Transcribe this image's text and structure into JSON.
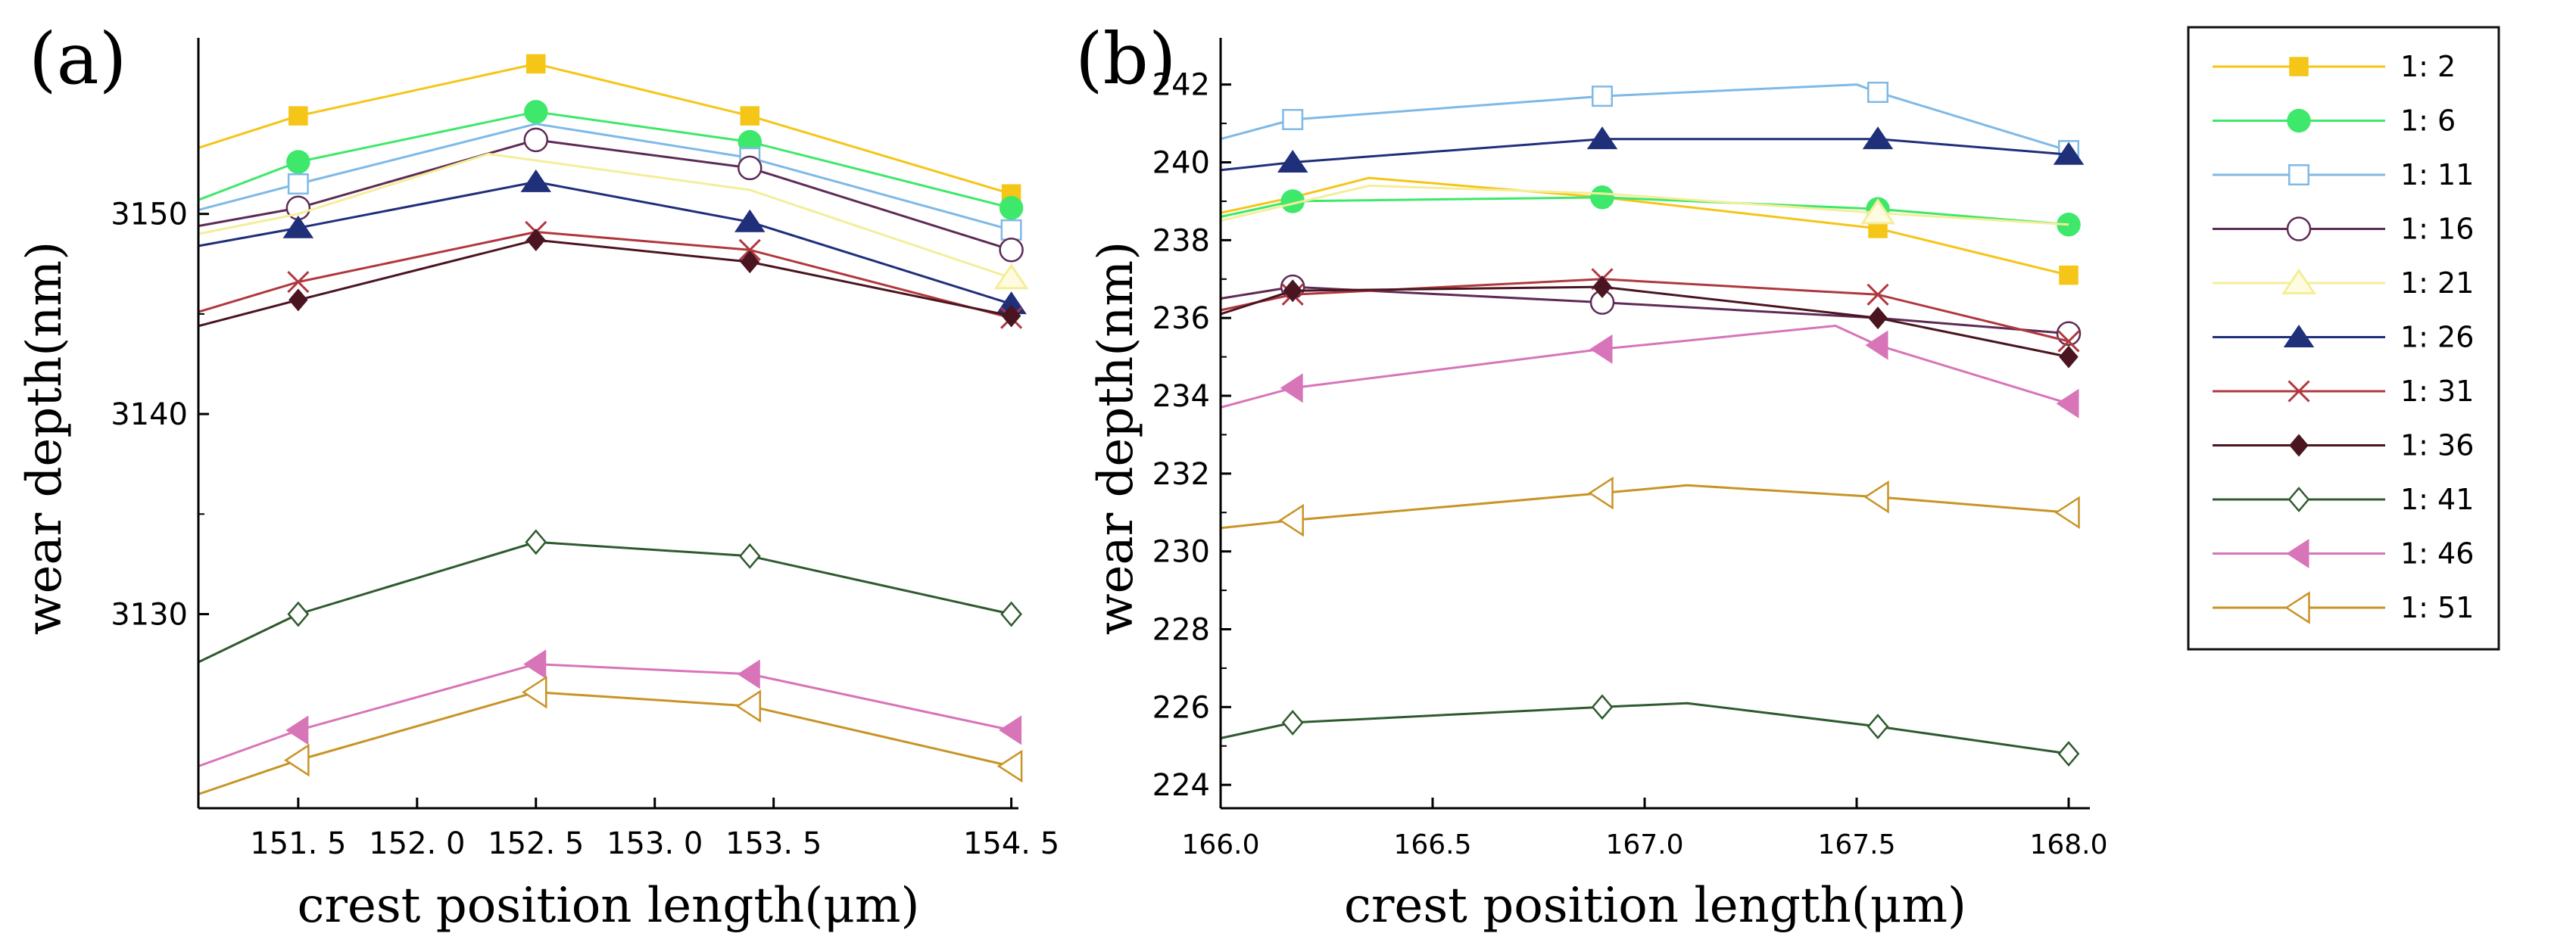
{
  "figure": {
    "panel_a_label": "(a)",
    "panel_b_label": "(b)"
  },
  "legend": {
    "entries": [
      {
        "label": "1: 2",
        "color": "#F5C518",
        "marker": "square-filled"
      },
      {
        "label": "1: 6",
        "color": "#3EE86A",
        "marker": "circle-filled"
      },
      {
        "label": "1: 11",
        "color": "#7FB9E6",
        "marker": "square-open"
      },
      {
        "label": "1: 16",
        "color": "#5E2B55",
        "marker": "circle-open"
      },
      {
        "label": "1: 21",
        "color": "#F4EE9A",
        "marker": "triangle-up-open"
      },
      {
        "label": "1: 26",
        "color": "#1F2F7A",
        "marker": "triangle-up-filled"
      },
      {
        "label": "1: 31",
        "color": "#B0383E",
        "marker": "x"
      },
      {
        "label": "1: 36",
        "color": "#4A1520",
        "marker": "diamond-filled"
      },
      {
        "label": "1: 41",
        "color": "#2F5A2F",
        "marker": "diamond-open"
      },
      {
        "label": "1: 46",
        "color": "#D874B8",
        "marker": "triangle-left-filled"
      },
      {
        "label": "1: 51",
        "color": "#C89426",
        "marker": "triangle-left-open"
      }
    ]
  },
  "chart_data": [
    {
      "type": "line",
      "panel": "(a)",
      "xlabel": "crest position length(μm)",
      "ylabel": "wear depth(nm)",
      "xlim": [
        151.08,
        154.53
      ],
      "ylim": [
        3120.3,
        3158.8
      ],
      "xticks": [
        151.5,
        152.0,
        152.5,
        153.0,
        153.5,
        154.5
      ],
      "xtick_labels": [
        "151. 5",
        "152. 0",
        "152. 5",
        "153. 0",
        "153. 5",
        "154. 5"
      ],
      "yticks": [
        3130,
        3140,
        3150
      ],
      "ytick_labels": [
        "3130",
        "3140",
        "3150"
      ],
      "series": [
        {
          "name": "1: 2",
          "points": [
            [
              151.08,
              3153.3
            ],
            [
              151.5,
              3154.9
            ],
            [
              152.5,
              3157.5
            ],
            [
              153.4,
              3154.9
            ],
            [
              154.5,
              3151.0
            ]
          ],
          "markers": [
            [
              151.5,
              3154.9
            ],
            [
              152.5,
              3157.5
            ],
            [
              153.4,
              3154.9
            ],
            [
              154.5,
              3151.0
            ]
          ]
        },
        {
          "name": "1: 6",
          "points": [
            [
              151.08,
              3150.7
            ],
            [
              151.5,
              3152.6
            ],
            [
              152.5,
              3155.1
            ],
            [
              153.4,
              3153.6
            ],
            [
              154.5,
              3150.3
            ]
          ],
          "markers": [
            [
              151.5,
              3152.6
            ],
            [
              152.5,
              3155.1
            ],
            [
              153.4,
              3153.6
            ],
            [
              154.5,
              3150.3
            ]
          ]
        },
        {
          "name": "1: 11",
          "points": [
            [
              151.08,
              3150.2
            ],
            [
              151.5,
              3151.5
            ],
            [
              152.5,
              3154.5
            ],
            [
              153.4,
              3152.8
            ],
            [
              154.5,
              3149.2
            ]
          ],
          "markers": [
            [
              151.5,
              3151.5
            ],
            [
              153.4,
              3152.8
            ],
            [
              154.5,
              3149.2
            ]
          ]
        },
        {
          "name": "1: 16",
          "points": [
            [
              151.08,
              3149.4
            ],
            [
              151.5,
              3150.3
            ],
            [
              152.5,
              3153.7
            ],
            [
              153.4,
              3152.3
            ],
            [
              154.5,
              3148.2
            ]
          ],
          "markers": [
            [
              151.5,
              3150.3
            ],
            [
              152.5,
              3153.7
            ],
            [
              153.4,
              3152.3
            ],
            [
              154.5,
              3148.2
            ]
          ]
        },
        {
          "name": "1: 21",
          "points": [
            [
              151.08,
              3149.0
            ],
            [
              151.5,
              3150.0
            ],
            [
              152.3,
              3153.0
            ],
            [
              153.4,
              3151.2
            ],
            [
              154.5,
              3146.8
            ]
          ],
          "markers": [
            [
              154.5,
              3146.8
            ]
          ]
        },
        {
          "name": "1: 26",
          "points": [
            [
              151.08,
              3148.4
            ],
            [
              151.5,
              3149.3
            ],
            [
              152.5,
              3151.6
            ],
            [
              153.4,
              3149.6
            ],
            [
              154.5,
              3145.5
            ]
          ],
          "markers": [
            [
              151.5,
              3149.3
            ],
            [
              152.5,
              3151.6
            ],
            [
              153.4,
              3149.6
            ],
            [
              154.5,
              3145.5
            ]
          ]
        },
        {
          "name": "1: 31",
          "points": [
            [
              151.08,
              3145.1
            ],
            [
              151.5,
              3146.6
            ],
            [
              152.5,
              3149.1
            ],
            [
              153.4,
              3148.2
            ],
            [
              154.5,
              3144.8
            ]
          ],
          "markers": [
            [
              151.5,
              3146.6
            ],
            [
              152.5,
              3149.1
            ],
            [
              153.4,
              3148.2
            ],
            [
              154.5,
              3144.8
            ]
          ]
        },
        {
          "name": "1: 36",
          "points": [
            [
              151.08,
              3144.4
            ],
            [
              151.5,
              3145.7
            ],
            [
              152.5,
              3148.7
            ],
            [
              153.4,
              3147.6
            ],
            [
              154.5,
              3144.9
            ]
          ],
          "markers": [
            [
              151.5,
              3145.7
            ],
            [
              152.5,
              3148.7
            ],
            [
              153.4,
              3147.6
            ],
            [
              154.5,
              3144.9
            ]
          ]
        },
        {
          "name": "1: 41",
          "points": [
            [
              151.08,
              3127.6
            ],
            [
              151.5,
              3130.0
            ],
            [
              152.5,
              3133.6
            ],
            [
              153.4,
              3132.9
            ],
            [
              154.5,
              3130.0
            ]
          ],
          "markers": [
            [
              151.5,
              3130.0
            ],
            [
              152.5,
              3133.6
            ],
            [
              153.4,
              3132.9
            ],
            [
              154.5,
              3130.0
            ]
          ]
        },
        {
          "name": "1: 46",
          "points": [
            [
              151.08,
              3122.4
            ],
            [
              151.5,
              3124.2
            ],
            [
              152.5,
              3127.5
            ],
            [
              153.4,
              3127.0
            ],
            [
              154.5,
              3124.2
            ]
          ],
          "markers": [
            [
              151.5,
              3124.2
            ],
            [
              152.5,
              3127.5
            ],
            [
              153.4,
              3127.0
            ],
            [
              154.5,
              3124.2
            ]
          ]
        },
        {
          "name": "1: 51",
          "points": [
            [
              151.08,
              3121.0
            ],
            [
              151.5,
              3122.7
            ],
            [
              152.5,
              3126.1
            ],
            [
              153.4,
              3125.4
            ],
            [
              154.5,
              3122.4
            ]
          ],
          "markers": [
            [
              151.5,
              3122.7
            ],
            [
              152.5,
              3126.1
            ],
            [
              153.4,
              3125.4
            ],
            [
              154.5,
              3122.4
            ]
          ]
        }
      ]
    },
    {
      "type": "line",
      "panel": "(b)",
      "xlabel": "crest position length(μm)",
      "ylabel": "wear depth(nm)",
      "xlim": [
        166.0,
        168.05
      ],
      "ylim": [
        223.4,
        243.2
      ],
      "xticks": [
        166.0,
        166.5,
        167.0,
        167.5,
        168.0
      ],
      "xtick_labels": [
        "166.0",
        "166.5",
        "167.0",
        "167.5",
        "168.0"
      ],
      "yticks": [
        224,
        226,
        228,
        230,
        232,
        234,
        236,
        238,
        240,
        242
      ],
      "ytick_labels": [
        "224",
        "226",
        "228",
        "230",
        "232",
        "234",
        "236",
        "238",
        "240",
        "242"
      ],
      "series": [
        {
          "name": "1: 2",
          "points": [
            [
              166.0,
              238.7
            ],
            [
              166.17,
              239.1
            ],
            [
              166.35,
              239.6
            ],
            [
              166.9,
              239.1
            ],
            [
              167.55,
              238.3
            ],
            [
              168.0,
              237.1
            ]
          ],
          "markers": [
            [
              167.55,
              238.3
            ],
            [
              168.0,
              237.1
            ]
          ]
        },
        {
          "name": "1: 6",
          "points": [
            [
              166.0,
              238.6
            ],
            [
              166.17,
              239.0
            ],
            [
              166.9,
              239.1
            ],
            [
              167.55,
              238.8
            ],
            [
              168.0,
              238.4
            ]
          ],
          "markers": [
            [
              166.17,
              239.0
            ],
            [
              166.9,
              239.1
            ],
            [
              167.55,
              238.8
            ],
            [
              168.0,
              238.4
            ]
          ]
        },
        {
          "name": "1: 11",
          "points": [
            [
              166.0,
              240.6
            ],
            [
              166.17,
              241.1
            ],
            [
              166.9,
              241.7
            ],
            [
              167.5,
              242.0
            ],
            [
              167.55,
              241.8
            ],
            [
              168.0,
              240.3
            ]
          ],
          "markers": [
            [
              166.17,
              241.1
            ],
            [
              166.9,
              241.7
            ],
            [
              167.55,
              241.8
            ],
            [
              168.0,
              240.3
            ]
          ]
        },
        {
          "name": "1: 16",
          "points": [
            [
              166.0,
              236.5
            ],
            [
              166.17,
              236.8
            ],
            [
              166.9,
              236.4
            ],
            [
              167.55,
              236.0
            ],
            [
              168.0,
              235.6
            ]
          ],
          "markers": [
            [
              166.17,
              236.8
            ],
            [
              166.9,
              236.4
            ],
            [
              168.0,
              235.6
            ]
          ]
        },
        {
          "name": "1: 21",
          "points": [
            [
              166.0,
              238.5
            ],
            [
              166.35,
              239.4
            ],
            [
              166.9,
              239.2
            ],
            [
              167.55,
              238.7
            ],
            [
              168.0,
              238.4
            ]
          ],
          "markers": [
            [
              167.55,
              238.7
            ]
          ]
        },
        {
          "name": "1: 26",
          "points": [
            [
              166.0,
              239.8
            ],
            [
              166.17,
              240.0
            ],
            [
              166.9,
              240.6
            ],
            [
              167.55,
              240.6
            ],
            [
              168.0,
              240.2
            ]
          ],
          "markers": [
            [
              166.17,
              240.0
            ],
            [
              166.9,
              240.6
            ],
            [
              167.55,
              240.6
            ],
            [
              168.0,
              240.2
            ]
          ]
        },
        {
          "name": "1: 31",
          "points": [
            [
              166.0,
              236.2
            ],
            [
              166.17,
              236.6
            ],
            [
              166.9,
              237.0
            ],
            [
              167.55,
              236.6
            ],
            [
              168.0,
              235.4
            ]
          ],
          "markers": [
            [
              166.17,
              236.6
            ],
            [
              166.9,
              237.0
            ],
            [
              167.55,
              236.6
            ],
            [
              168.0,
              235.4
            ]
          ]
        },
        {
          "name": "1: 36",
          "points": [
            [
              166.0,
              236.1
            ],
            [
              166.17,
              236.7
            ],
            [
              166.9,
              236.8
            ],
            [
              167.55,
              236.0
            ],
            [
              168.0,
              235.0
            ]
          ],
          "markers": [
            [
              166.17,
              236.7
            ],
            [
              166.9,
              236.8
            ],
            [
              167.55,
              236.0
            ],
            [
              168.0,
              235.0
            ]
          ]
        },
        {
          "name": "1: 41",
          "points": [
            [
              166.0,
              225.2
            ],
            [
              166.17,
              225.6
            ],
            [
              166.9,
              226.0
            ],
            [
              167.1,
              226.1
            ],
            [
              167.55,
              225.5
            ],
            [
              168.0,
              224.8
            ]
          ],
          "markers": [
            [
              166.17,
              225.6
            ],
            [
              166.9,
              226.0
            ],
            [
              167.55,
              225.5
            ],
            [
              168.0,
              224.8
            ]
          ]
        },
        {
          "name": "1: 46",
          "points": [
            [
              166.0,
              233.7
            ],
            [
              166.17,
              234.2
            ],
            [
              166.9,
              235.2
            ],
            [
              167.45,
              235.8
            ],
            [
              167.55,
              235.3
            ],
            [
              168.0,
              233.8
            ]
          ],
          "markers": [
            [
              166.17,
              234.2
            ],
            [
              166.9,
              235.2
            ],
            [
              167.55,
              235.3
            ],
            [
              168.0,
              233.8
            ]
          ]
        },
        {
          "name": "1: 51",
          "points": [
            [
              166.0,
              230.6
            ],
            [
              166.17,
              230.8
            ],
            [
              166.9,
              231.5
            ],
            [
              167.1,
              231.7
            ],
            [
              167.55,
              231.4
            ],
            [
              168.0,
              231.0
            ]
          ],
          "markers": [
            [
              166.17,
              230.8
            ],
            [
              166.9,
              231.5
            ],
            [
              167.55,
              231.4
            ],
            [
              168.0,
              231.0
            ]
          ]
        }
      ]
    }
  ]
}
